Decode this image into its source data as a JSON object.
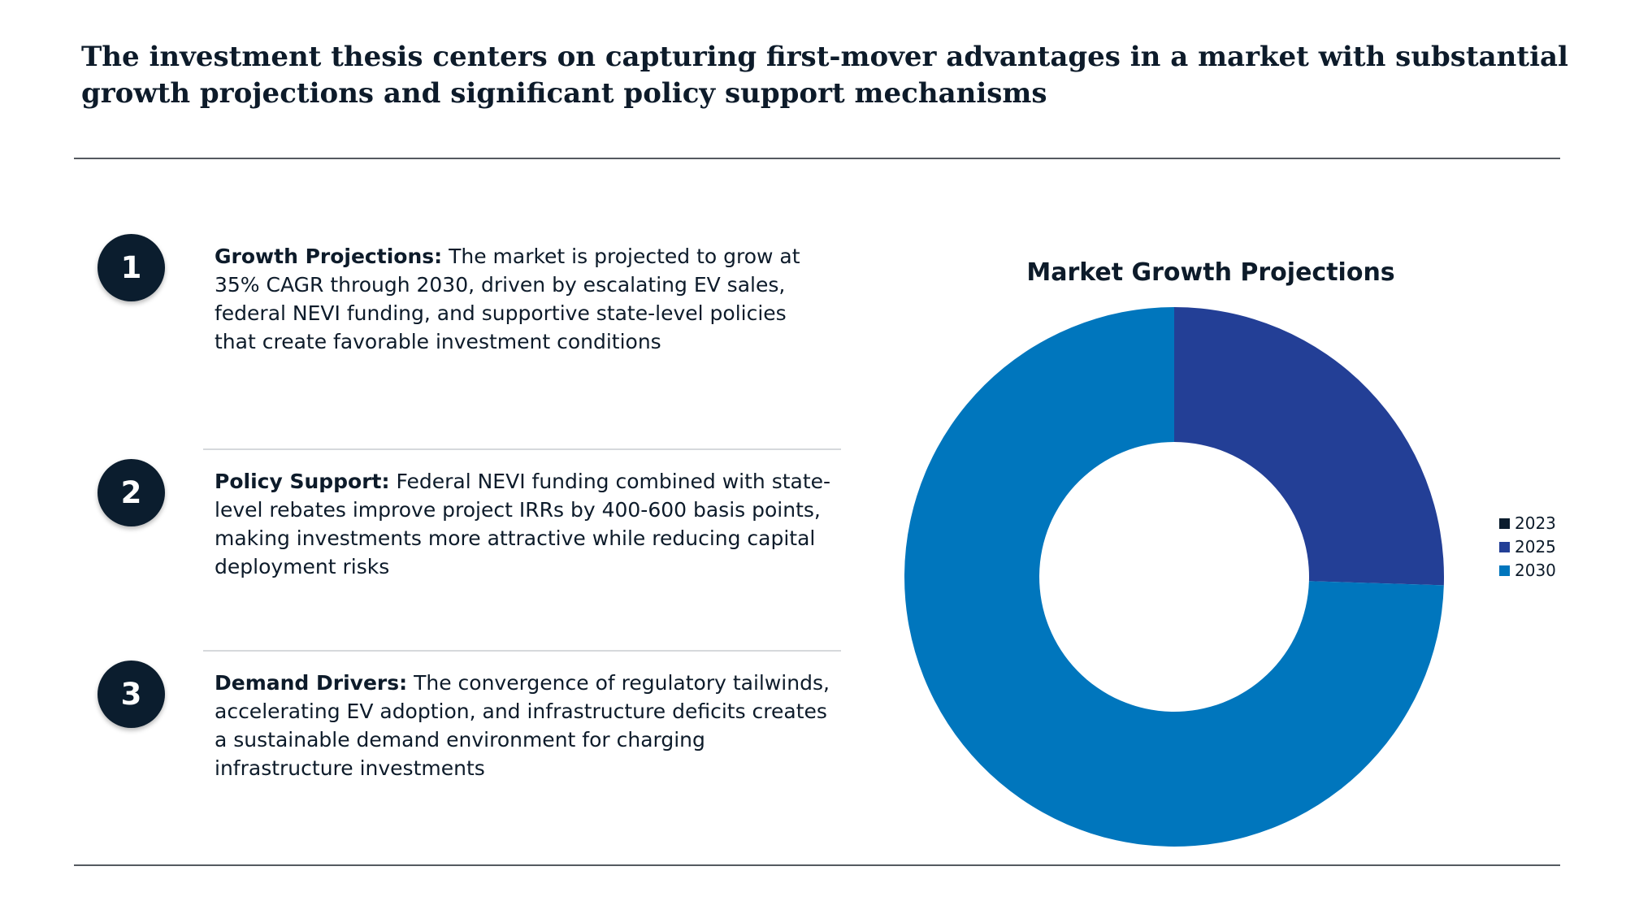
{
  "header": {
    "title": "The investment thesis centers on capturing first-mover advantages in a market with substantial growth projections and significant policy support mechanisms"
  },
  "points": [
    {
      "number": "1",
      "heading": "Growth Projections:",
      "body": " The market is projected to grow at 35% CAGR through 2030, driven by escalating EV sales, federal NEVI funding, and supportive state-level policies that create favorable investment conditions"
    },
    {
      "number": "2",
      "heading": "Policy Support:",
      "body": " Federal NEVI funding combined with state-level rebates improve project IRRs by 400-600 basis points, making investments more attractive while reducing capital deployment risks"
    },
    {
      "number": "3",
      "heading": "Demand Drivers:",
      "body": " The convergence of regulatory tailwinds, accelerating EV adoption, and infrastructure deficits creates a sustainable demand environment for charging infrastructure investments"
    }
  ],
  "chart_data": {
    "type": "pie",
    "variant": "donut",
    "title": "Market Growth Projections",
    "categories": [
      "2023",
      "2025",
      "2030"
    ],
    "values": [
      0,
      25.5,
      74.5
    ],
    "colors": [
      "#0b1d2e",
      "#233f96",
      "#0076bd"
    ],
    "legend_position": "right"
  }
}
